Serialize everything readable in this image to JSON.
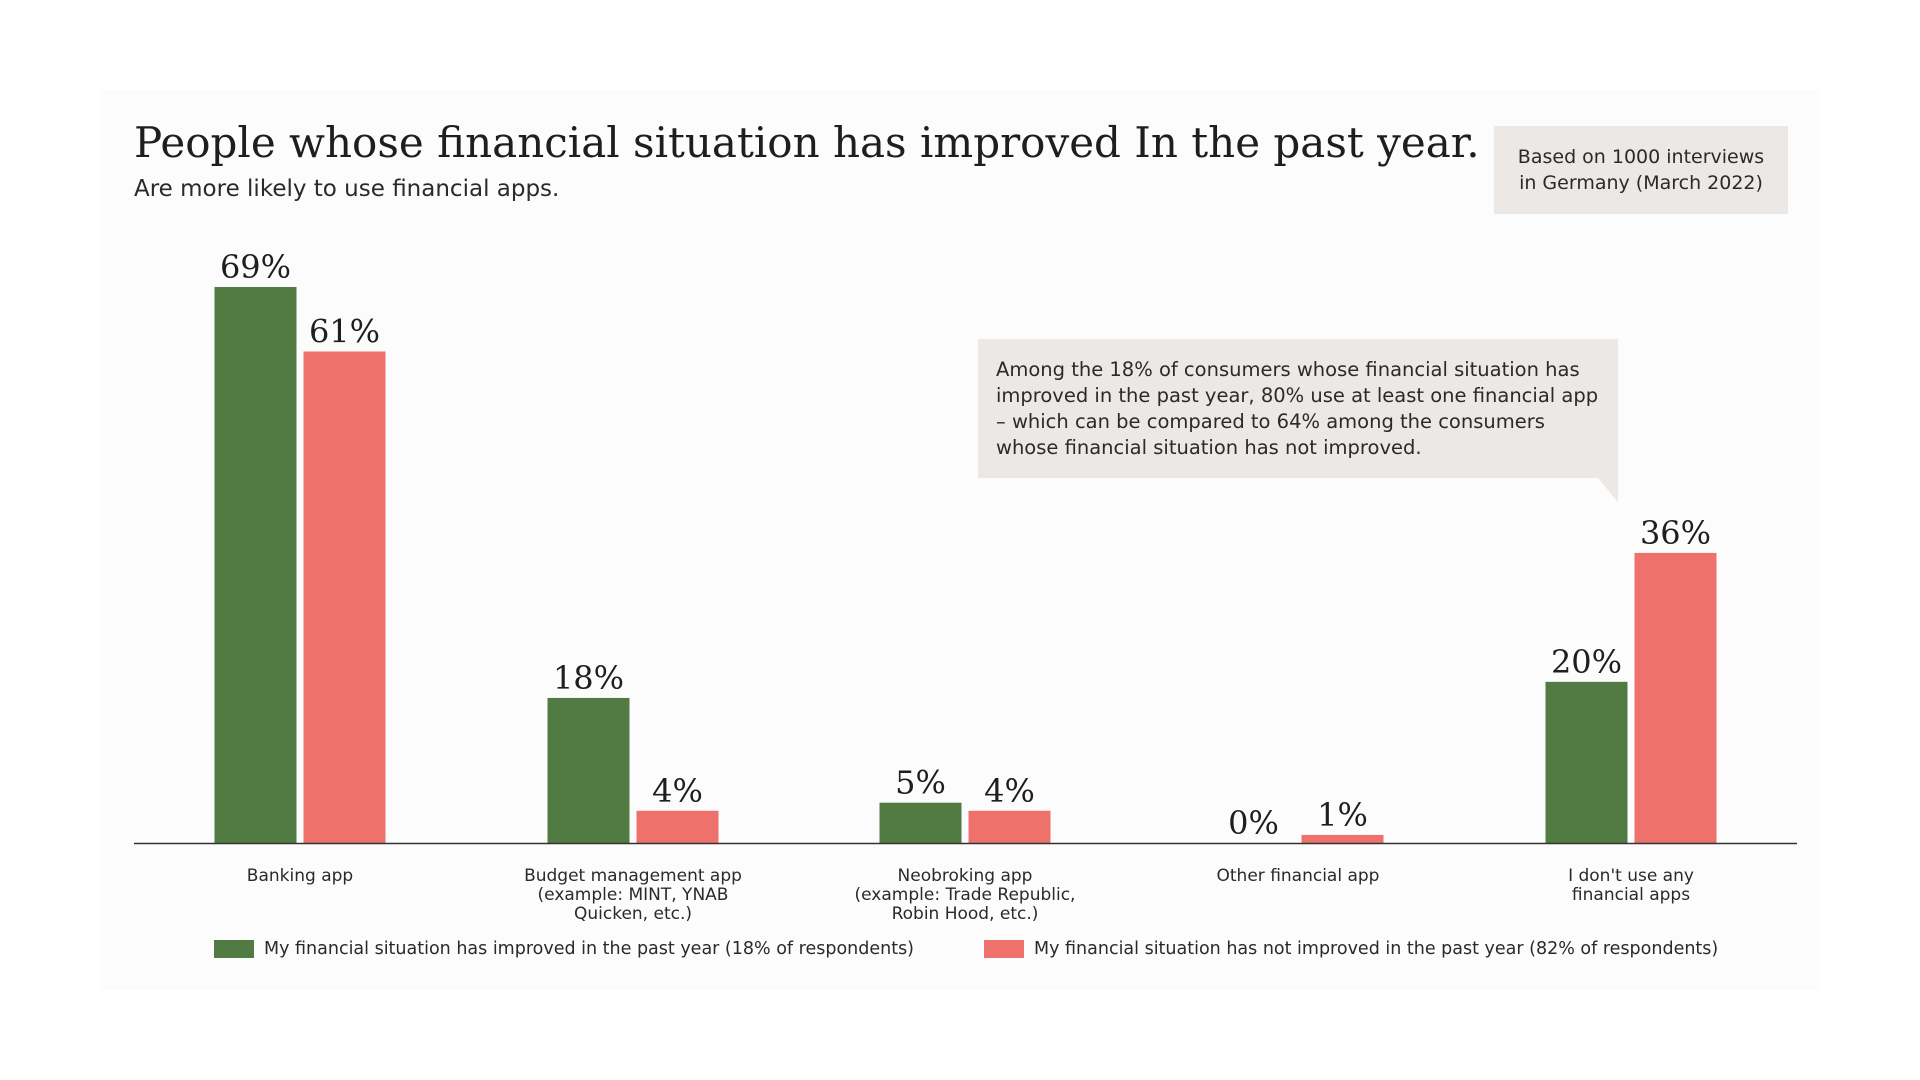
{
  "title": "People whose financial situation has improved In the past year.",
  "subtitle": "Are more likely to use financial apps.",
  "source_note": {
    "line1": "Based on 1000 interviews",
    "line2": "in Germany (March 2022)"
  },
  "callout": {
    "lines": [
      "Among the 18% of consumers whose financial situation has",
      "improved in the past year, 80% use at least one financial app",
      "– which can be compared to 64% among the consumers",
      "whose financial situation has not improved."
    ]
  },
  "colors": {
    "improved": "#527a43",
    "not_improved": "#ef716b",
    "axis": "#333333"
  },
  "chart_data": {
    "type": "bar",
    "title": "People whose financial situation has improved In the past year.",
    "subtitle": "Are more likely to use financial apps.",
    "xlabel": "",
    "ylabel": "",
    "ylim": [
      0,
      69
    ],
    "grid": false,
    "legend_position": "bottom",
    "categories": [
      [
        "Banking app"
      ],
      [
        "Budget management app",
        "(example: MINT, YNAB",
        "Quicken, etc.)"
      ],
      [
        "Neobroking app",
        "(example: Trade Republic,",
        "Robin Hood, etc.)"
      ],
      [
        "Other financial app"
      ],
      [
        "I don't use any",
        "financial apps"
      ]
    ],
    "series": [
      {
        "name": "My financial situation has improved in the past year (18% of respondents)",
        "color_key": "improved",
        "values": [
          69,
          18,
          5,
          0,
          20
        ],
        "labels": [
          "69%",
          "18%",
          "5%",
          "0%",
          "20%"
        ]
      },
      {
        "name": "My financial situation has not improved in the past year (82% of respondents)",
        "color_key": "not_improved",
        "values": [
          61,
          4,
          4,
          1,
          36
        ],
        "labels": [
          "61%",
          "4%",
          "4%",
          "1%",
          "36%"
        ]
      }
    ]
  }
}
